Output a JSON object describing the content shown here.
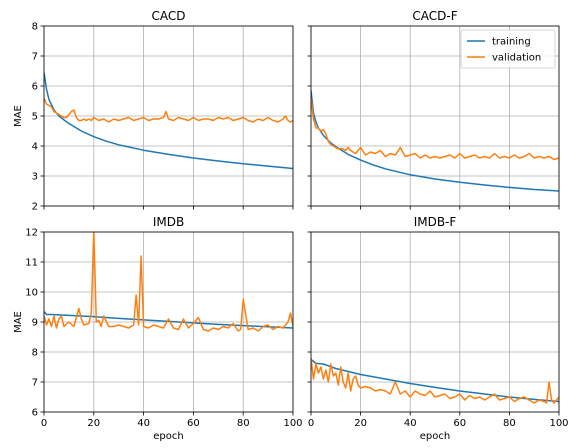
{
  "figure": {
    "legend": {
      "location": "top-right",
      "panel": 1,
      "entries": [
        "training",
        "validation"
      ]
    },
    "series_colors": {
      "training": "#1f77b4",
      "validation": "#ff7f0e"
    },
    "grid": true
  },
  "chart_data": [
    {
      "type": "line",
      "title": "CACD",
      "xlabel": "",
      "ylabel": "MAE",
      "xlim": [
        0,
        100
      ],
      "ylim": [
        2,
        8
      ],
      "xticks": [
        "0",
        "20",
        "40",
        "60",
        "80",
        "100"
      ],
      "yticks": [
        "2",
        "3",
        "4",
        "5",
        "6",
        "7",
        "8"
      ],
      "show_xtick_labels": false,
      "show_ytick_labels": true,
      "series": [
        {
          "name": "training",
          "color": "#1f77b4",
          "x": [
            0,
            1,
            2,
            4,
            6,
            8,
            10,
            15,
            20,
            25,
            30,
            40,
            50,
            60,
            70,
            80,
            90,
            100
          ],
          "y": [
            6.45,
            5.9,
            5.55,
            5.2,
            5.0,
            4.87,
            4.75,
            4.5,
            4.31,
            4.16,
            4.04,
            3.86,
            3.72,
            3.6,
            3.5,
            3.41,
            3.33,
            3.25
          ]
        },
        {
          "name": "validation",
          "color": "#ff7f0e",
          "x": [
            0,
            1,
            2,
            3,
            4,
            5,
            6,
            7,
            8,
            9,
            10,
            11,
            12,
            13,
            14,
            15,
            16,
            17,
            18,
            19,
            20,
            22,
            24,
            26,
            28,
            30,
            32,
            34,
            36,
            38,
            40,
            42,
            44,
            46,
            48,
            49,
            50,
            52,
            54,
            56,
            58,
            60,
            62,
            64,
            66,
            68,
            70,
            72,
            74,
            76,
            78,
            80,
            82,
            84,
            86,
            88,
            90,
            92,
            94,
            96,
            97,
            98,
            99,
            100
          ],
          "y": [
            5.6,
            5.4,
            5.35,
            5.3,
            5.15,
            5.1,
            5.05,
            5.0,
            4.95,
            4.95,
            5.05,
            5.15,
            5.2,
            4.95,
            4.85,
            4.85,
            4.9,
            4.85,
            4.9,
            4.85,
            4.95,
            4.85,
            4.9,
            4.8,
            4.9,
            4.85,
            4.9,
            4.95,
            4.85,
            4.9,
            4.95,
            4.85,
            4.9,
            4.9,
            4.95,
            5.15,
            4.9,
            4.85,
            4.95,
            4.9,
            4.85,
            4.95,
            4.85,
            4.9,
            4.9,
            4.85,
            4.95,
            4.9,
            4.95,
            4.85,
            4.9,
            4.95,
            4.85,
            4.8,
            4.9,
            4.85,
            4.95,
            4.85,
            4.8,
            4.9,
            5.0,
            4.85,
            4.8,
            4.85
          ]
        }
      ]
    },
    {
      "type": "line",
      "title": "CACD-F",
      "xlabel": "",
      "ylabel": "",
      "xlim": [
        0,
        100
      ],
      "ylim": [
        2,
        8
      ],
      "xticks": [
        "0",
        "20",
        "40",
        "60",
        "80",
        "100"
      ],
      "yticks": [
        "2",
        "3",
        "4",
        "5",
        "6",
        "7",
        "8"
      ],
      "show_xtick_labels": false,
      "show_ytick_labels": false,
      "series": [
        {
          "name": "training",
          "color": "#1f77b4",
          "x": [
            0,
            1,
            2,
            3,
            5,
            8,
            10,
            15,
            20,
            25,
            30,
            40,
            50,
            60,
            70,
            80,
            90,
            100
          ],
          "y": [
            5.85,
            5.1,
            4.8,
            4.6,
            4.35,
            4.1,
            3.98,
            3.72,
            3.53,
            3.37,
            3.24,
            3.04,
            2.9,
            2.79,
            2.7,
            2.62,
            2.55,
            2.5
          ]
        },
        {
          "name": "validation",
          "color": "#ff7f0e",
          "x": [
            0,
            1,
            2,
            3,
            4,
            5,
            6,
            7,
            8,
            9,
            10,
            11,
            12,
            13,
            14,
            15,
            16,
            18,
            20,
            22,
            24,
            26,
            28,
            30,
            32,
            34,
            36,
            38,
            40,
            42,
            44,
            46,
            48,
            50,
            52,
            54,
            56,
            58,
            60,
            62,
            64,
            66,
            68,
            70,
            72,
            74,
            76,
            78,
            80,
            82,
            84,
            86,
            88,
            90,
            92,
            94,
            96,
            98,
            100
          ],
          "y": [
            5.6,
            4.9,
            4.6,
            4.6,
            4.5,
            4.55,
            4.4,
            4.15,
            4.05,
            4.0,
            3.95,
            3.9,
            3.92,
            3.9,
            3.85,
            3.95,
            3.85,
            3.75,
            3.95,
            3.7,
            3.8,
            3.75,
            3.85,
            3.65,
            3.75,
            3.7,
            3.95,
            3.65,
            3.7,
            3.75,
            3.6,
            3.7,
            3.6,
            3.65,
            3.6,
            3.65,
            3.7,
            3.6,
            3.75,
            3.6,
            3.65,
            3.7,
            3.6,
            3.65,
            3.6,
            3.75,
            3.6,
            3.65,
            3.6,
            3.7,
            3.6,
            3.65,
            3.75,
            3.6,
            3.65,
            3.6,
            3.65,
            3.55,
            3.6
          ]
        }
      ]
    },
    {
      "type": "line",
      "title": "IMDB",
      "xlabel": "epoch",
      "ylabel": "MAE",
      "xlim": [
        0,
        100
      ],
      "ylim": [
        6,
        12
      ],
      "xticks": [
        "0",
        "20",
        "40",
        "60",
        "80",
        "100"
      ],
      "yticks": [
        "6",
        "7",
        "8",
        "9",
        "10",
        "11",
        "12"
      ],
      "show_xtick_labels": true,
      "show_ytick_labels": true,
      "series": [
        {
          "name": "training",
          "color": "#1f77b4",
          "x": [
            0,
            1,
            3,
            10,
            20,
            30,
            40,
            50,
            60,
            70,
            80,
            90,
            100
          ],
          "y": [
            9.35,
            9.25,
            9.25,
            9.22,
            9.18,
            9.12,
            9.07,
            9.02,
            8.97,
            8.92,
            8.88,
            8.84,
            8.8
          ]
        },
        {
          "name": "validation",
          "color": "#ff7f0e",
          "x": [
            0,
            1,
            2,
            3,
            4,
            5,
            6,
            7,
            8,
            10,
            12,
            14,
            15,
            16,
            18,
            19,
            20,
            21,
            22,
            23,
            24,
            26,
            28,
            30,
            32,
            34,
            36,
            37,
            38,
            39,
            40,
            42,
            44,
            46,
            48,
            50,
            52,
            54,
            56,
            58,
            60,
            62,
            64,
            66,
            68,
            70,
            72,
            74,
            76,
            78,
            79,
            80,
            82,
            84,
            86,
            88,
            90,
            92,
            94,
            96,
            98,
            99,
            100
          ],
          "y": [
            9.2,
            8.9,
            9.1,
            8.85,
            9.2,
            8.8,
            9.1,
            9.2,
            8.85,
            9.0,
            8.85,
            9.45,
            9.1,
            8.9,
            8.95,
            9.3,
            12.05,
            9.0,
            9.05,
            8.85,
            9.2,
            8.85,
            8.85,
            8.9,
            8.85,
            8.8,
            8.9,
            9.9,
            8.9,
            11.2,
            8.85,
            8.8,
            8.9,
            8.85,
            8.8,
            9.1,
            8.8,
            8.75,
            9.1,
            8.8,
            8.95,
            9.15,
            8.75,
            8.7,
            8.8,
            8.75,
            8.85,
            8.8,
            8.95,
            8.7,
            8.75,
            9.75,
            8.75,
            8.8,
            8.7,
            8.85,
            8.9,
            8.75,
            8.85,
            8.8,
            9.0,
            9.3,
            8.85
          ]
        }
      ]
    },
    {
      "type": "line",
      "title": "IMDB-F",
      "xlabel": "epoch",
      "ylabel": "",
      "xlim": [
        0,
        100
      ],
      "ylim": [
        6,
        12
      ],
      "xticks": [
        "0",
        "20",
        "40",
        "60",
        "80",
        "100"
      ],
      "yticks": [
        "6",
        "7",
        "8",
        "9",
        "10",
        "11",
        "12"
      ],
      "show_xtick_labels": true,
      "show_ytick_labels": false,
      "series": [
        {
          "name": "training",
          "color": "#1f77b4",
          "x": [
            0,
            2,
            5,
            10,
            15,
            20,
            30,
            40,
            50,
            60,
            70,
            80,
            90,
            100
          ],
          "y": [
            7.75,
            7.62,
            7.6,
            7.45,
            7.35,
            7.25,
            7.1,
            6.95,
            6.82,
            6.7,
            6.6,
            6.5,
            6.42,
            6.35
          ]
        },
        {
          "name": "validation",
          "color": "#ff7f0e",
          "x": [
            0,
            1,
            2,
            3,
            4,
            5,
            6,
            7,
            8,
            9,
            10,
            11,
            12,
            13,
            14,
            15,
            16,
            17,
            18,
            19,
            20,
            22,
            24,
            26,
            28,
            30,
            32,
            34,
            36,
            38,
            40,
            42,
            44,
            46,
            48,
            50,
            52,
            54,
            56,
            58,
            60,
            62,
            64,
            66,
            68,
            70,
            72,
            74,
            76,
            78,
            80,
            82,
            84,
            86,
            88,
            90,
            92,
            94,
            95,
            96,
            97,
            98,
            100
          ],
          "y": [
            7.8,
            7.1,
            7.6,
            7.3,
            7.5,
            7.1,
            7.4,
            7.0,
            7.6,
            7.2,
            7.3,
            6.9,
            7.5,
            7.0,
            6.8,
            7.3,
            6.7,
            7.1,
            7.2,
            6.9,
            6.8,
            6.85,
            6.8,
            6.7,
            6.75,
            6.7,
            6.6,
            7.0,
            6.6,
            6.7,
            6.5,
            6.7,
            6.6,
            6.55,
            6.7,
            6.5,
            6.55,
            6.6,
            6.45,
            6.5,
            6.6,
            6.4,
            6.55,
            6.45,
            6.5,
            6.4,
            6.5,
            6.6,
            6.4,
            6.45,
            6.5,
            6.35,
            6.45,
            6.5,
            6.4,
            6.3,
            6.4,
            6.35,
            6.3,
            7.0,
            6.4,
            6.3,
            6.5
          ]
        }
      ]
    }
  ]
}
